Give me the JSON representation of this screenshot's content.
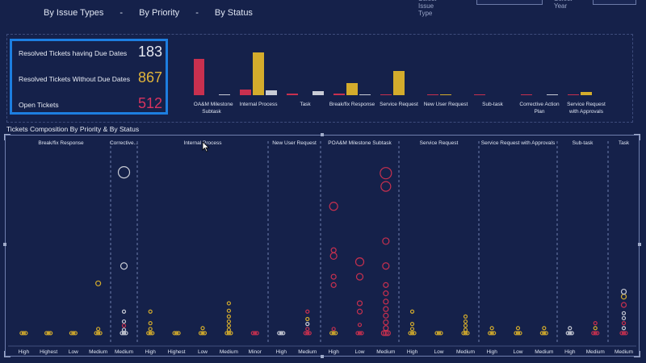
{
  "tabs": [
    "By Issue Types",
    "By Priority",
    "By Status"
  ],
  "tab_separator": "-",
  "filters": {
    "issue_type_label": "Select Issue Type",
    "year_label": "Select Year"
  },
  "kpis": [
    {
      "label": "Resolved Tickets having Due Dates",
      "value": "183",
      "color": "#e6e9f2"
    },
    {
      "label": "Resolved Tickets Without Due Dates",
      "value": "867",
      "color": "#e2b53a"
    },
    {
      "label": "Open Tickets",
      "value": "512",
      "color": "#d8335f"
    }
  ],
  "colors": {
    "crimson": "#c8304f",
    "gold": "#d4ac2c",
    "silver": "#c9ccd6",
    "background": "#15214a",
    "grid": "#6f7fae"
  },
  "chart_data": [
    {
      "type": "bar",
      "categories": [
        "POA&M Milestone Subtask",
        "Internal Process",
        "Task",
        "Break/fix Response",
        "Service Request",
        "New User Request",
        "Sub-task",
        "Corrective Action Plan",
        "Service Request with Approvals"
      ],
      "series_colors": [
        "#c8304f",
        "#d4ac2c",
        "#c9ccd6"
      ],
      "series": [
        {
          "values": [
            45,
            7,
            2,
            2,
            1,
            1,
            1,
            1,
            1
          ]
        },
        {
          "values": [
            0,
            53,
            0,
            15,
            30,
            1,
            0,
            0,
            4
          ]
        },
        {
          "values": [
            1,
            6,
            5,
            1,
            0,
            0,
            0,
            1,
            0
          ]
        }
      ],
      "ylim": [
        0,
        60
      ]
    },
    {
      "type": "scatter",
      "title": "Tickets Composition By Priority & By Status",
      "groups": [
        {
          "name": "Break/fix Response",
          "x": [
            "High",
            "Highest",
            "Low",
            "Medium"
          ]
        },
        {
          "name": "Corrective...",
          "x": [
            "Medium"
          ]
        },
        {
          "name": "Internal Process",
          "x": [
            "High",
            "Highest",
            "Low",
            "Medium",
            "Minor"
          ]
        },
        {
          "name": "New User Request",
          "x": [
            "High",
            "Medium"
          ]
        },
        {
          "name": "POA&M Milestone Subtask",
          "x": [
            "High",
            "Low",
            "Medium"
          ]
        },
        {
          "name": "Service Request",
          "x": [
            "High",
            "Low",
            "Medium"
          ]
        },
        {
          "name": "Service Request with Approvals",
          "x": [
            "High",
            "Low",
            "Medium"
          ]
        },
        {
          "name": "Sub-task",
          "x": [
            "High",
            "Medium"
          ]
        },
        {
          "name": "Task",
          "x": [
            "Medium"
          ]
        }
      ],
      "points": [
        {
          "g": 0,
          "c": 0,
          "y": 2,
          "r": 2,
          "s": 1
        },
        {
          "g": 0,
          "c": 1,
          "y": 2,
          "r": 2,
          "s": 1
        },
        {
          "g": 0,
          "c": 2,
          "y": 2,
          "r": 2,
          "s": 1
        },
        {
          "g": 0,
          "c": 3,
          "y": 2,
          "r": 2,
          "s": 1
        },
        {
          "g": 0,
          "c": 3,
          "y": 7,
          "r": 2,
          "s": 1
        },
        {
          "g": 0,
          "c": 3,
          "y": 62,
          "r": 3,
          "s": 1
        },
        {
          "g": 1,
          "c": 0,
          "y": 2,
          "r": 2,
          "s": 2
        },
        {
          "g": 1,
          "c": 0,
          "y": 6,
          "r": 2,
          "s": 2
        },
        {
          "g": 1,
          "c": 0,
          "y": 11,
          "r": 2,
          "s": 0
        },
        {
          "g": 1,
          "c": 0,
          "y": 16,
          "r": 2,
          "s": 2
        },
        {
          "g": 1,
          "c": 0,
          "y": 28,
          "r": 2,
          "s": 2
        },
        {
          "g": 1,
          "c": 0,
          "y": 83,
          "r": 4,
          "s": 2
        },
        {
          "g": 1,
          "c": 0,
          "y": 196,
          "r": 7,
          "s": 2
        },
        {
          "g": 2,
          "c": 0,
          "y": 2,
          "r": 2,
          "s": 1
        },
        {
          "g": 2,
          "c": 0,
          "y": 7,
          "r": 2,
          "s": 1
        },
        {
          "g": 2,
          "c": 0,
          "y": 14,
          "r": 2,
          "s": 1
        },
        {
          "g": 2,
          "c": 0,
          "y": 28,
          "r": 2,
          "s": 1
        },
        {
          "g": 2,
          "c": 1,
          "y": 2,
          "r": 2,
          "s": 1
        },
        {
          "g": 2,
          "c": 2,
          "y": 2,
          "r": 2,
          "s": 1
        },
        {
          "g": 2,
          "c": 2,
          "y": 8,
          "r": 2,
          "s": 1
        },
        {
          "g": 2,
          "c": 3,
          "y": 2,
          "r": 2,
          "s": 1
        },
        {
          "g": 2,
          "c": 3,
          "y": 6,
          "r": 2,
          "s": 1
        },
        {
          "g": 2,
          "c": 3,
          "y": 11,
          "r": 2,
          "s": 1
        },
        {
          "g": 2,
          "c": 3,
          "y": 16,
          "r": 2,
          "s": 1
        },
        {
          "g": 2,
          "c": 3,
          "y": 22,
          "r": 2,
          "s": 1
        },
        {
          "g": 2,
          "c": 3,
          "y": 29,
          "r": 2,
          "s": 1
        },
        {
          "g": 2,
          "c": 3,
          "y": 38,
          "r": 2,
          "s": 1
        },
        {
          "g": 2,
          "c": 4,
          "y": 2,
          "r": 2,
          "s": 0
        },
        {
          "g": 3,
          "c": 0,
          "y": 2,
          "r": 2,
          "s": 2
        },
        {
          "g": 3,
          "c": 1,
          "y": 2,
          "r": 2,
          "s": 0
        },
        {
          "g": 3,
          "c": 1,
          "y": 7,
          "r": 2,
          "s": 0
        },
        {
          "g": 3,
          "c": 1,
          "y": 13,
          "r": 2,
          "s": 2
        },
        {
          "g": 3,
          "c": 1,
          "y": 19,
          "r": 2,
          "s": 1
        },
        {
          "g": 3,
          "c": 1,
          "y": 28,
          "r": 2,
          "s": 0
        },
        {
          "g": 4,
          "c": 0,
          "y": 2,
          "r": 2,
          "s": 1
        },
        {
          "g": 4,
          "c": 0,
          "y": 7,
          "r": 2,
          "s": 0
        },
        {
          "g": 4,
          "c": 0,
          "y": 60,
          "r": 3,
          "s": 0
        },
        {
          "g": 4,
          "c": 0,
          "y": 70,
          "r": 3,
          "s": 0
        },
        {
          "g": 4,
          "c": 0,
          "y": 95,
          "r": 4,
          "s": 0
        },
        {
          "g": 4,
          "c": 0,
          "y": 102,
          "r": 3,
          "s": 0
        },
        {
          "g": 4,
          "c": 0,
          "y": 155,
          "r": 5,
          "s": 0
        },
        {
          "g": 4,
          "c": 1,
          "y": 2,
          "r": 2,
          "s": 0
        },
        {
          "g": 4,
          "c": 1,
          "y": 12,
          "r": 2,
          "s": 0
        },
        {
          "g": 4,
          "c": 1,
          "y": 28,
          "r": 3,
          "s": 0
        },
        {
          "g": 4,
          "c": 1,
          "y": 38,
          "r": 3,
          "s": 0
        },
        {
          "g": 4,
          "c": 1,
          "y": 70,
          "r": 4,
          "s": 0
        },
        {
          "g": 4,
          "c": 1,
          "y": 88,
          "r": 5,
          "s": 0
        },
        {
          "g": 4,
          "c": 2,
          "y": 2,
          "r": 3,
          "s": 0
        },
        {
          "g": 4,
          "c": 2,
          "y": 8,
          "r": 3,
          "s": 0
        },
        {
          "g": 4,
          "c": 2,
          "y": 15,
          "r": 3,
          "s": 0
        },
        {
          "g": 4,
          "c": 2,
          "y": 23,
          "r": 3,
          "s": 0
        },
        {
          "g": 4,
          "c": 2,
          "y": 31,
          "r": 3,
          "s": 0
        },
        {
          "g": 4,
          "c": 2,
          "y": 40,
          "r": 3,
          "s": 0
        },
        {
          "g": 4,
          "c": 2,
          "y": 50,
          "r": 3,
          "s": 0
        },
        {
          "g": 4,
          "c": 2,
          "y": 60,
          "r": 3,
          "s": 0
        },
        {
          "g": 4,
          "c": 2,
          "y": 83,
          "r": 4,
          "s": 0
        },
        {
          "g": 4,
          "c": 2,
          "y": 113,
          "r": 4,
          "s": 0
        },
        {
          "g": 4,
          "c": 2,
          "y": 179,
          "r": 6,
          "s": 0
        },
        {
          "g": 4,
          "c": 2,
          "y": 195,
          "r": 7,
          "s": 0
        },
        {
          "g": 5,
          "c": 0,
          "y": 2,
          "r": 2,
          "s": 1
        },
        {
          "g": 5,
          "c": 0,
          "y": 7,
          "r": 2,
          "s": 1
        },
        {
          "g": 5,
          "c": 0,
          "y": 13,
          "r": 2,
          "s": 1
        },
        {
          "g": 5,
          "c": 0,
          "y": 28,
          "r": 2,
          "s": 1
        },
        {
          "g": 5,
          "c": 1,
          "y": 2,
          "r": 2,
          "s": 1
        },
        {
          "g": 5,
          "c": 2,
          "y": 2,
          "r": 2,
          "s": 1
        },
        {
          "g": 5,
          "c": 2,
          "y": 6,
          "r": 2,
          "s": 1
        },
        {
          "g": 5,
          "c": 2,
          "y": 11,
          "r": 2,
          "s": 1
        },
        {
          "g": 5,
          "c": 2,
          "y": 16,
          "r": 2,
          "s": 1
        },
        {
          "g": 5,
          "c": 2,
          "y": 22,
          "r": 2,
          "s": 1
        },
        {
          "g": 6,
          "c": 0,
          "y": 2,
          "r": 2,
          "s": 1
        },
        {
          "g": 6,
          "c": 0,
          "y": 8,
          "r": 2,
          "s": 1
        },
        {
          "g": 6,
          "c": 1,
          "y": 2,
          "r": 2,
          "s": 1
        },
        {
          "g": 6,
          "c": 1,
          "y": 8,
          "r": 2,
          "s": 1
        },
        {
          "g": 6,
          "c": 2,
          "y": 2,
          "r": 2,
          "s": 1
        },
        {
          "g": 6,
          "c": 2,
          "y": 8,
          "r": 2,
          "s": 1
        },
        {
          "g": 7,
          "c": 0,
          "y": 2,
          "r": 2,
          "s": 2
        },
        {
          "g": 7,
          "c": 0,
          "y": 8,
          "r": 2,
          "s": 2
        },
        {
          "g": 7,
          "c": 1,
          "y": 2,
          "r": 2,
          "s": 0
        },
        {
          "g": 7,
          "c": 1,
          "y": 8,
          "r": 2,
          "s": 1
        },
        {
          "g": 7,
          "c": 1,
          "y": 14,
          "r": 2,
          "s": 0
        },
        {
          "g": 8,
          "c": 0,
          "y": 2,
          "r": 2,
          "s": 0
        },
        {
          "g": 8,
          "c": 0,
          "y": 8,
          "r": 2,
          "s": 2
        },
        {
          "g": 8,
          "c": 0,
          "y": 14,
          "r": 2,
          "s": 0
        },
        {
          "g": 8,
          "c": 0,
          "y": 20,
          "r": 2,
          "s": 2
        },
        {
          "g": 8,
          "c": 0,
          "y": 26,
          "r": 2,
          "s": 2
        },
        {
          "g": 8,
          "c": 0,
          "y": 36,
          "r": 3,
          "s": 0
        },
        {
          "g": 8,
          "c": 0,
          "y": 46,
          "r": 3,
          "s": 1
        },
        {
          "g": 8,
          "c": 0,
          "y": 52,
          "r": 3,
          "s": 2
        }
      ],
      "ylim": [
        0,
        220
      ]
    }
  ]
}
